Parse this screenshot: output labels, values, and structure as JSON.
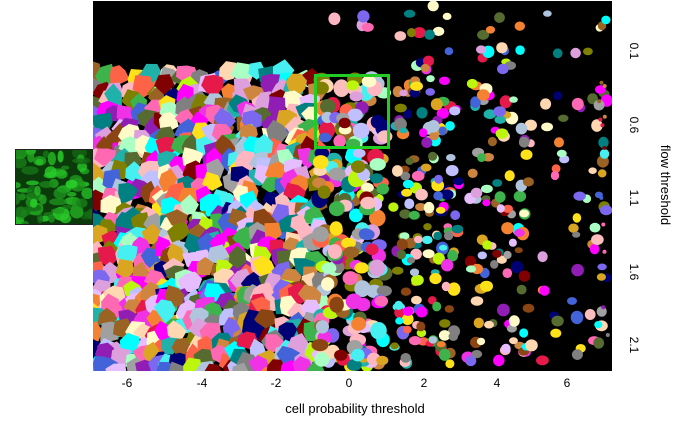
{
  "x_axis": {
    "title": "cell probability threshold",
    "ticks": [
      "-6",
      "-4",
      "-2",
      "0",
      "2",
      "4",
      "6"
    ]
  },
  "y_axis": {
    "title": "flow threshold",
    "ticks": [
      "0.1",
      "0.6",
      "1.1",
      "1.6",
      "2.1"
    ]
  },
  "selected_cell": {
    "cell_probability_threshold": "0",
    "flow_threshold": "0.6"
  },
  "colors": {
    "highlight": "#22cc22",
    "background": "#000000",
    "thumbnail": "#2fa82f"
  },
  "input_image": "green fluorescence micrograph"
}
